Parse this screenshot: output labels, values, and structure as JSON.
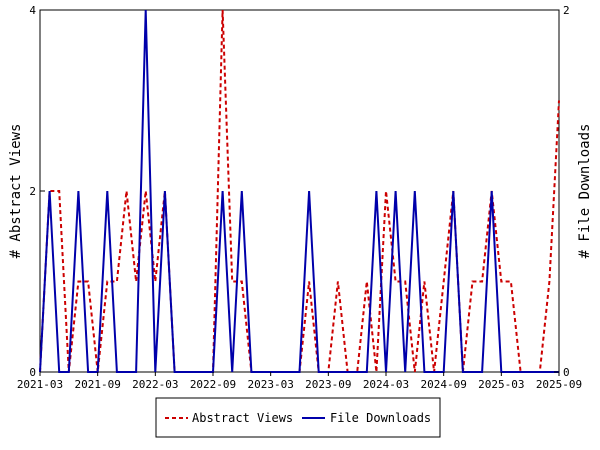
{
  "chart_data": {
    "type": "line",
    "y_left_label": "# Abstract Views",
    "y_right_label": "# File Downloads",
    "y_left_ticks": [
      "0",
      "2",
      "4"
    ],
    "y_right_ticks": [
      "0",
      "2"
    ],
    "ylim_left": [
      0,
      4
    ],
    "ylim_right": [
      0,
      2
    ],
    "x_tick_labels": [
      "2021-03",
      "2021-09",
      "2022-03",
      "2022-09",
      "2023-03",
      "2023-09",
      "2024-03",
      "2024-09",
      "2025-03",
      "2025-09"
    ],
    "x_start": "2021-03",
    "x_end": "2025-09",
    "series": [
      {
        "name": "Abstract Views",
        "axis": "left",
        "color": "#cc0000",
        "dash": true,
        "x": [
          "2021-03",
          "2021-04",
          "2021-05",
          "2021-06",
          "2021-07",
          "2021-08",
          "2021-09",
          "2021-10",
          "2021-11",
          "2021-12",
          "2022-01",
          "2022-02",
          "2022-03",
          "2022-04",
          "2022-05",
          "2022-06",
          "2022-07",
          "2022-08",
          "2022-09",
          "2022-10",
          "2022-11",
          "2022-12",
          "2023-01",
          "2023-02",
          "2023-03",
          "2023-04",
          "2023-05",
          "2023-06",
          "2023-07",
          "2023-08",
          "2023-09",
          "2023-10",
          "2023-11",
          "2023-12",
          "2024-01",
          "2024-02",
          "2024-03",
          "2024-04",
          "2024-05",
          "2024-06",
          "2024-07",
          "2024-08",
          "2024-09",
          "2024-10",
          "2024-11",
          "2024-12",
          "2025-01",
          "2025-02",
          "2025-03",
          "2025-04",
          "2025-05",
          "2025-06",
          "2025-07",
          "2025-08",
          "2025-09"
        ],
        "values": [
          0,
          2,
          2,
          0,
          1,
          1,
          0,
          1,
          1,
          2,
          1,
          2,
          1,
          2,
          0,
          0,
          0,
          0,
          0,
          4,
          1,
          1,
          0,
          0,
          0,
          0,
          0,
          0,
          1,
          0,
          0,
          1,
          0,
          0,
          1,
          0,
          2,
          1,
          1,
          0,
          1,
          0,
          1,
          2,
          0,
          1,
          1,
          2,
          1,
          1,
          0,
          0,
          0,
          1,
          3
        ]
      },
      {
        "name": "File Downloads",
        "axis": "right",
        "color": "#0000aa",
        "dash": false,
        "x": [
          "2021-03",
          "2021-04",
          "2021-05",
          "2021-06",
          "2021-07",
          "2021-08",
          "2021-09",
          "2021-10",
          "2021-11",
          "2021-12",
          "2022-01",
          "2022-02",
          "2022-03",
          "2022-04",
          "2022-05",
          "2022-06",
          "2022-07",
          "2022-08",
          "2022-09",
          "2022-10",
          "2022-11",
          "2022-12",
          "2023-01",
          "2023-02",
          "2023-03",
          "2023-04",
          "2023-05",
          "2023-06",
          "2023-07",
          "2023-08",
          "2023-09",
          "2023-10",
          "2023-11",
          "2023-12",
          "2024-01",
          "2024-02",
          "2024-03",
          "2024-04",
          "2024-05",
          "2024-06",
          "2024-07",
          "2024-08",
          "2024-09",
          "2024-10",
          "2024-11",
          "2024-12",
          "2025-01",
          "2025-02",
          "2025-03",
          "2025-04",
          "2025-05",
          "2025-06",
          "2025-07",
          "2025-08",
          "2025-09"
        ],
        "values": [
          0,
          1,
          0,
          0,
          1,
          0,
          0,
          1,
          0,
          0,
          0,
          2,
          0,
          1,
          0,
          0,
          0,
          0,
          0,
          1,
          0,
          1,
          0,
          0,
          0,
          0,
          0,
          0,
          1,
          0,
          0,
          0,
          0,
          0,
          0,
          1,
          0,
          1,
          0,
          1,
          0,
          0,
          0,
          1,
          0,
          0,
          0,
          1,
          0,
          0,
          0,
          0,
          0,
          0,
          0
        ]
      }
    ],
    "legend_position": "bottom-center",
    "grid": false
  }
}
